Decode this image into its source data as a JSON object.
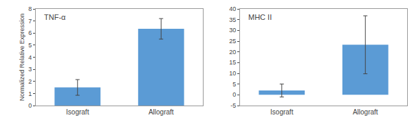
{
  "chart_data": [
    {
      "type": "bar",
      "title": "TNF-α",
      "categories": [
        "Isograft",
        "Allograft"
      ],
      "values": [
        1.5,
        6.35
      ],
      "errors": [
        0.65,
        0.85
      ],
      "color": "#5B9BD5",
      "ylabel": "Normalized Relative Expression",
      "ylim": [
        0,
        8
      ],
      "yticks": [
        0,
        1,
        2,
        3,
        4,
        5,
        6,
        7,
        8
      ],
      "grid": false
    },
    {
      "type": "bar",
      "title": "MHC II",
      "categories": [
        "Isograft",
        "Allograft"
      ],
      "values": [
        2.0,
        23.3
      ],
      "errors": [
        3.0,
        13.5
      ],
      "color": "#5B9BD5",
      "ylim": [
        -5,
        40
      ],
      "yticks": [
        -5,
        0,
        5,
        10,
        15,
        20,
        25,
        30,
        35,
        40
      ],
      "grid": false
    }
  ]
}
